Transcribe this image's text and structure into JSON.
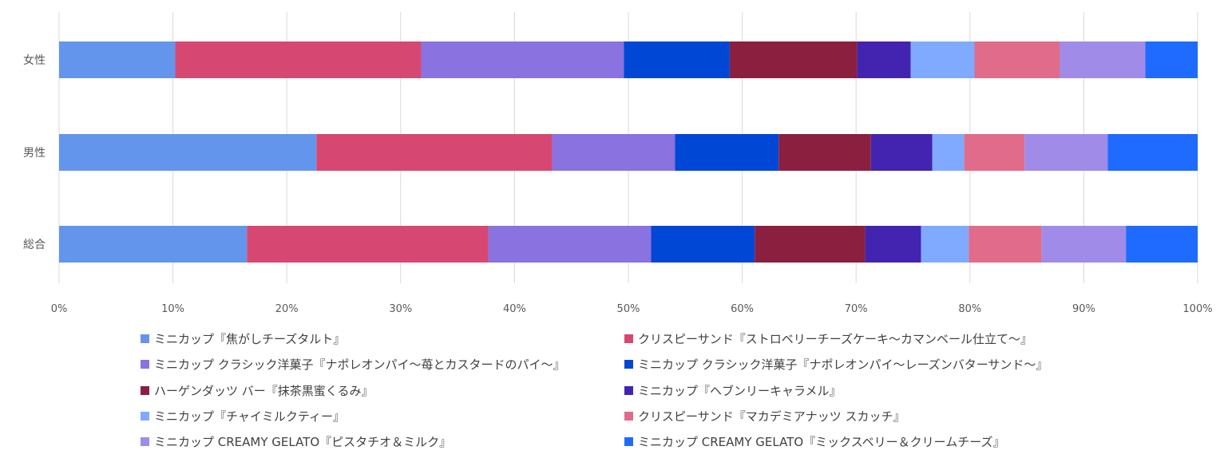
{
  "chart_data": {
    "type": "bar",
    "orientation": "horizontal",
    "stacked": "percent",
    "categories": [
      "女性",
      "男性",
      "総合"
    ],
    "xlim": [
      0,
      100
    ],
    "xticks": [
      "0%",
      "10%",
      "20%",
      "30%",
      "40%",
      "50%",
      "60%",
      "70%",
      "80%",
      "90%",
      "100%"
    ],
    "grid": true,
    "legend_position": "bottom",
    "series": [
      {
        "name": "ミニカップ『焦がしチーズタルト』",
        "color": "#6495ED",
        "values": [
          10.2,
          22.6,
          16.5
        ]
      },
      {
        "name": "クリスピーサンド『ストロベリーチーズケーキ〜カマンベール仕立て〜』",
        "color": "#D64871",
        "values": [
          21.6,
          20.7,
          21.2
        ]
      },
      {
        "name": "ミニカップ クラシック洋菓子『ナポレオンパイ〜苺とカスタードのパイ〜』",
        "color": "#8A72E0",
        "values": [
          17.8,
          10.8,
          14.3
        ]
      },
      {
        "name": "ミニカップ クラシック洋菓子『ナポレオンパイ〜レーズンバターサンド〜』",
        "color": "#0047D6",
        "values": [
          9.3,
          9.1,
          9.1
        ]
      },
      {
        "name": "ハーゲンダッツ バー『抹茶黒蜜くるみ』",
        "color": "#8B1F3F",
        "values": [
          11.2,
          8.1,
          9.7
        ]
      },
      {
        "name": "ミニカップ『ヘブンリーキャラメル』",
        "color": "#4224B0",
        "values": [
          4.7,
          5.4,
          4.9
        ]
      },
      {
        "name": "ミニカップ『チャイミルクティー』",
        "color": "#7FAAFF",
        "values": [
          5.6,
          2.8,
          4.2
        ]
      },
      {
        "name": "クリスピーサンド『マカデミアナッツ スカッチ』",
        "color": "#E06B8B",
        "values": [
          7.5,
          5.3,
          6.4
        ]
      },
      {
        "name": "ミニカップ CREAMY GELATO『ピスタチオ＆ミルク』",
        "color": "#A08CE8",
        "values": [
          7.5,
          7.3,
          7.4
        ]
      },
      {
        "name": "ミニカップ CREAMY GELATO『ミックスベリー＆クリームチーズ』",
        "color": "#1F6BFF",
        "values": [
          4.6,
          7.9,
          6.3
        ]
      }
    ]
  }
}
